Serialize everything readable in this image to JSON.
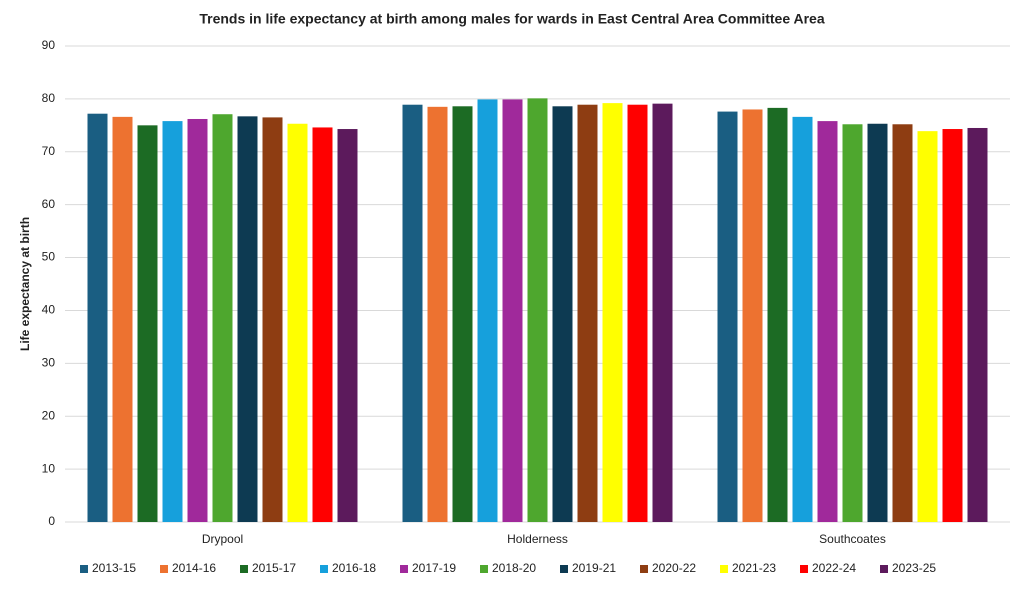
{
  "chart_data": {
    "type": "bar",
    "title": "Trends in life expectancy at birth among males for wards in East Central Area Committee Area",
    "y_label": "Life expectancy at birth",
    "categories": [
      "Drypool",
      "Holderness",
      "Southcoates"
    ],
    "series": [
      {
        "name": "2013-15",
        "color": "#1a5e82",
        "values": [
          77.2,
          78.9,
          77.6
        ]
      },
      {
        "name": "2014-16",
        "color": "#ed7230",
        "values": [
          76.6,
          78.5,
          78.0
        ]
      },
      {
        "name": "2015-17",
        "color": "#1c6b24",
        "values": [
          75.0,
          78.6,
          78.3
        ]
      },
      {
        "name": "2016-18",
        "color": "#16a0dc",
        "values": [
          75.8,
          79.9,
          76.6
        ]
      },
      {
        "name": "2017-19",
        "color": "#a0299b",
        "values": [
          76.2,
          79.9,
          75.8
        ]
      },
      {
        "name": "2018-20",
        "color": "#4ea72e",
        "values": [
          77.1,
          80.1,
          75.2
        ]
      },
      {
        "name": "2019-21",
        "color": "#0d3a52",
        "values": [
          76.7,
          78.6,
          75.3
        ]
      },
      {
        "name": "2020-22",
        "color": "#8e3d12",
        "values": [
          76.5,
          78.9,
          75.2
        ]
      },
      {
        "name": "2021-23",
        "color": "#ffff00",
        "values": [
          75.3,
          79.2,
          73.9
        ]
      },
      {
        "name": "2022-24",
        "color": "#ff0000",
        "values": [
          74.6,
          78.9,
          74.3
        ]
      },
      {
        "name": "2023-25",
        "color": "#5c1a5c",
        "values": [
          74.3,
          79.1,
          74.5
        ]
      }
    ],
    "ylim": [
      0,
      90
    ],
    "yticks": [
      0,
      10,
      20,
      30,
      40,
      50,
      60,
      70,
      80,
      90
    ],
    "grid": true,
    "legend": "bottom"
  }
}
